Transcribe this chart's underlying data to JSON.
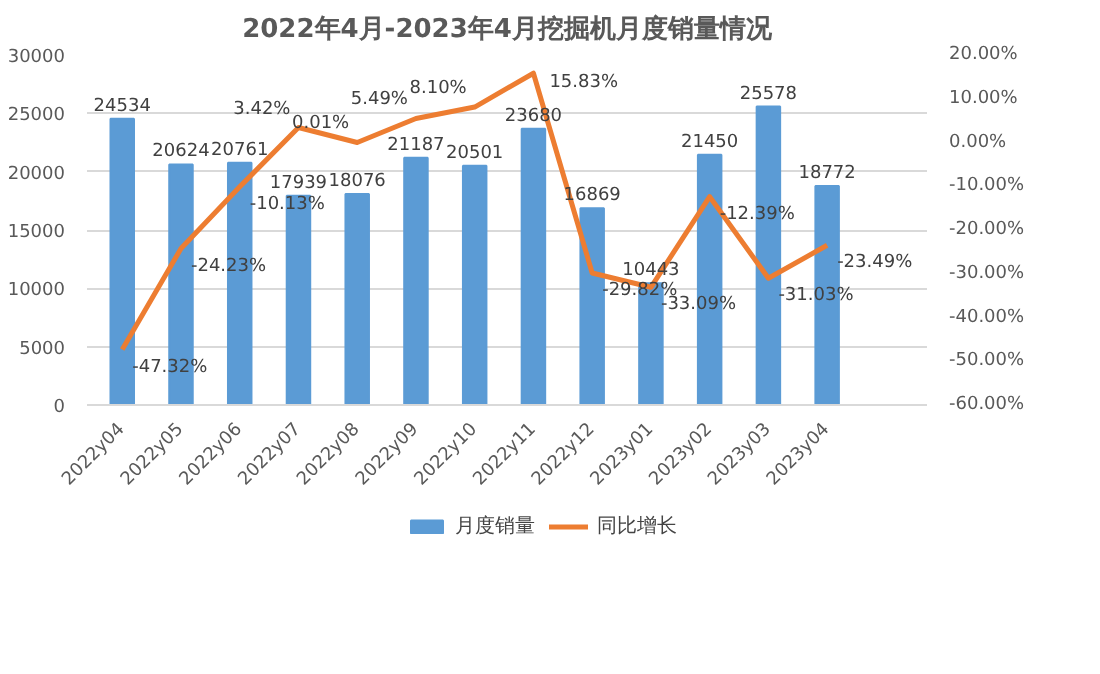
{
  "chart_data": {
    "type": "bar",
    "title": "2022年4月-2023年4月挖掘机月度销量情况",
    "categories": [
      "2022y04",
      "2022y05",
      "2022y06",
      "2022y07",
      "2022y08",
      "2022y09",
      "2022y10",
      "2022y11",
      "2022y12",
      "2023y01",
      "2023y02",
      "2023y03",
      "2023y04"
    ],
    "series": [
      {
        "name": "月度销量",
        "color": "#5b9bd5",
        "values": [
          24534,
          20624,
          20761,
          17939,
          18076,
          21187,
          20501,
          23680,
          16869,
          10443,
          21450,
          25578,
          18772
        ]
      },
      {
        "name": "同比增长",
        "type": "line",
        "axis": "y2",
        "color": "#ed7d31",
        "values": [
          -47.32,
          -24.23,
          -10.13,
          3.42,
          0.01,
          5.49,
          8.1,
          15.83,
          -29.82,
          -33.09,
          -12.39,
          -31.03,
          -23.49
        ],
        "value_labels": [
          "-47.32%",
          "-24.23%",
          "-10.13%",
          "3.42%",
          "0.01%",
          "5.49%",
          "8.10%",
          "15.83%",
          "-29.82%",
          "-33.09%",
          "-12.39%",
          "-31.03%",
          "-23.49%"
        ]
      }
    ],
    "ylim": [
      0,
      30000
    ],
    "yticks": [
      0,
      5000,
      10000,
      15000,
      20000,
      25000,
      30000
    ],
    "y2lim": [
      -60,
      20
    ],
    "y2ticks": [
      {
        "value": -60,
        "label": "-60.00%"
      },
      {
        "value": -50,
        "label": "-50.00%"
      },
      {
        "value": -40,
        "label": "-40.00%"
      },
      {
        "value": -30,
        "label": "-30.00%"
      },
      {
        "value": -20,
        "label": "-20.00%"
      },
      {
        "value": -10,
        "label": "-10.00%"
      },
      {
        "value": 0,
        "label": "0.00%"
      },
      {
        "value": 10,
        "label": "10.00%"
      },
      {
        "value": 20,
        "label": "20.00%"
      }
    ],
    "data_labels": true,
    "grid": "y",
    "legend": "bottom",
    "marker": "none",
    "line_style": "solid"
  }
}
